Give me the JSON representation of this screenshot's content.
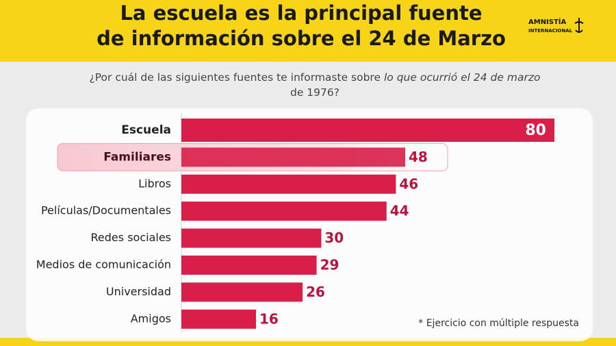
{
  "chart_data": {
    "type": "bar",
    "orientation": "horizontal",
    "title": [
      "La escuela es la principal fuente",
      "de información sobre el 24 de Marzo"
    ],
    "logo": [
      "AMNISTÍA",
      "INTERNACIONAL"
    ],
    "subtitle": "¿Por cuál de las siguientes fuentes te informaste sobre",
    "subtitle_italic": "lo que ocurrió el 24 de marzo",
    "subtitle_end": "de 1976?",
    "categories": [
      "Escuela",
      "Familiares",
      "Libros",
      "Películas/Documentales",
      "Redes sociales",
      "Medios de comunicación",
      "Universidad",
      "Amigos"
    ],
    "values": [
      80,
      48,
      46,
      44,
      30,
      29,
      26,
      16
    ],
    "color": "#d81e49",
    "label_color": "#b9143d",
    "highlight": 1,
    "xlim": [
      0,
      80
    ],
    "note": "* Ejercicio con múltiple respuesta"
  }
}
